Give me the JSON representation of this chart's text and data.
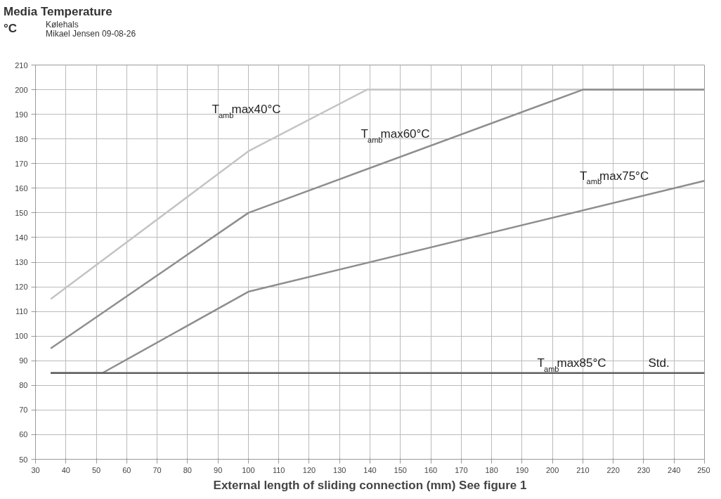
{
  "chart_data": {
    "type": "line",
    "title": "Media Temperature",
    "ylabel": "°C",
    "subtitle": "Kølehals\nMikael Jensen 09-08-26",
    "xlabel": "External length of sliding connection (mm) See figure 1",
    "series": [
      {
        "name": "T$_{amb}$max40°C",
        "color": "#c4c4c4",
        "x": [
          35,
          100,
          139,
          250
        ],
        "values": [
          115,
          175,
          200,
          200
        ]
      },
      {
        "name": "T$_{amb}$max60°C",
        "color": "#8e8e8e",
        "x": [
          35,
          100,
          210,
          250
        ],
        "values": [
          95,
          150,
          200,
          200
        ]
      },
      {
        "name": "T$_{amb}$max75°C",
        "color": "#8e8e8e",
        "x": [
          35,
          52,
          100,
          250
        ],
        "values": [
          85,
          85,
          118,
          163
        ]
      },
      {
        "name": "T$_{amb}$max85°C",
        "color": "#5f5f5f",
        "x": [
          35,
          250
        ],
        "values": [
          85,
          85
        ]
      }
    ],
    "annotations": [
      "Std."
    ],
    "xlim": [
      30,
      250
    ],
    "ylim": [
      50,
      210
    ],
    "xticks": [
      30,
      40,
      50,
      60,
      70,
      80,
      90,
      100,
      110,
      120,
      130,
      140,
      150,
      160,
      170,
      180,
      190,
      200,
      210,
      220,
      230,
      240,
      250
    ],
    "yticks": [
      50,
      60,
      70,
      80,
      90,
      100,
      110,
      120,
      130,
      140,
      150,
      160,
      170,
      180,
      190,
      200,
      210
    ],
    "grid": true,
    "marker": "none",
    "line_style": "solid"
  }
}
